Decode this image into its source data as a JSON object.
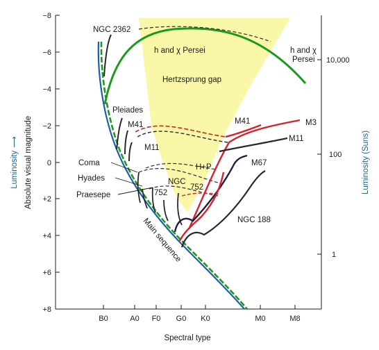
{
  "chart_data": {
    "type": "line",
    "xlabel": "Spectral type",
    "ylabel": "Absolute visual magnitude",
    "y2label": "Luminosity (Suns)",
    "arrow_label": "Luminosity",
    "arrow_glyph": "⟶",
    "x_categories": [
      "B0",
      "A0",
      "F0",
      "G0",
      "K0",
      "M0",
      "M8"
    ],
    "y_ticks": [
      "−8",
      "−6",
      "−4",
      "−2",
      "0",
      "+2",
      "+4",
      "+6",
      "+8"
    ],
    "y2_ticks": [
      "10,000",
      "100",
      "1"
    ],
    "ylim": [
      -8,
      8
    ],
    "y_inverted": true,
    "region_label": "Hertzsprung gap",
    "main_sequence_label": "Main sequence",
    "colors": {
      "green": "#1a9a1a",
      "red": "#d8202a",
      "black": "#2a2a2a",
      "dark": "#2a1a3a",
      "gap": "#fbf7a8",
      "lum": "#1b6a8a"
    },
    "series": [
      {
        "name": "NGC 2362",
        "color": "black",
        "points": [
          [
            0.62,
            -5.0
          ],
          [
            0.68,
            -6.5
          ],
          [
            0.78,
            -7.2
          ]
        ]
      },
      {
        "name": "h and χ Persei",
        "color": "green",
        "points": [
          [
            1.05,
            -3.0
          ],
          [
            1.2,
            -5.8
          ],
          [
            1.55,
            -6.9
          ],
          [
            2.4,
            -7.5
          ],
          [
            3.3,
            -7.3
          ],
          [
            4.0,
            -6.8
          ],
          [
            4.6,
            -5.8
          ],
          [
            5.0,
            -4.8
          ]
        ]
      },
      {
        "name": "Pleiades",
        "color": "black",
        "points": [
          [
            0.85,
            -2.0
          ],
          [
            0.88,
            -1.0
          ],
          [
            0.95,
            0.0
          ]
        ]
      },
      {
        "name": "M41",
        "color": "black",
        "points": [
          [
            0.95,
            -2.0
          ],
          [
            0.98,
            -0.8
          ],
          [
            1.05,
            0.2
          ]
        ]
      },
      {
        "name": "M41",
        "color": "red",
        "points": [
          [
            3.4,
            -1.2
          ],
          [
            3.9,
            -1.8
          ]
        ]
      },
      {
        "name": "M3",
        "color": "red",
        "points": [
          [
            3.05,
            0.2
          ],
          [
            3.35,
            -1.5
          ],
          [
            3.9,
            -2.0
          ],
          [
            4.3,
            -2.5
          ]
        ]
      },
      {
        "name": "M11",
        "color": "black",
        "points": [
          [
            1.1,
            -1.1
          ],
          [
            1.08,
            -0.3
          ],
          [
            1.12,
            0.5
          ]
        ]
      },
      {
        "name": "M11",
        "color": "black",
        "points": [
          [
            3.05,
            -0.7
          ],
          [
            3.6,
            -1.0
          ],
          [
            4.2,
            -1.3
          ]
        ]
      },
      {
        "name": "M67",
        "color": "dark",
        "points": [
          [
            2.35,
            2.8
          ],
          [
            2.45,
            3.3
          ],
          [
            2.7,
            3.5
          ],
          [
            3.0,
            2.3
          ],
          [
            3.2,
            1.5
          ],
          [
            3.45,
            0.0
          ]
        ]
      },
      {
        "name": "NGC 188",
        "color": "black",
        "points": [
          [
            2.3,
            3.9
          ],
          [
            2.5,
            3.3
          ],
          [
            2.8,
            3.8
          ],
          [
            3.3,
            2.8
          ],
          [
            3.6,
            1.6
          ],
          [
            3.95,
            0.5
          ]
        ]
      },
      {
        "name": "H+P",
        "color": "red",
        "points": [
          [
            2.3,
            4.2
          ],
          [
            2.5,
            3.4
          ],
          [
            2.9,
            2.5
          ],
          [
            3.3,
            1.3
          ],
          [
            3.6,
            -0.4
          ],
          [
            3.85,
            -1.3
          ]
        ]
      },
      {
        "name": "NGC 752",
        "color": "black",
        "points": [
          [
            2.15,
            1.0
          ],
          [
            2.25,
            -0.3
          ],
          [
            2.4,
            -0.6
          ]
        ]
      },
      {
        "name": "Coma",
        "color": "black",
        "points": [
          [
            1.35,
            1.4
          ],
          [
            1.45,
            1.0
          ]
        ]
      },
      {
        "name": "Hyades",
        "color": "black",
        "points": [
          [
            1.6,
            2.4
          ],
          [
            1.65,
            1.6
          ]
        ]
      },
      {
        "name": "Praesepe",
        "color": "black",
        "points": [
          [
            1.8,
            2.5
          ],
          [
            1.85,
            2.0
          ]
        ]
      }
    ],
    "labels": {
      "ngc2362": "NGC 2362",
      "hchi_top": "h and χ Persei",
      "hchi_right1": "h and χ",
      "hchi_right2": "Persei",
      "pleiades": "Pleiades",
      "m41_left": "M41",
      "m41_right": "M41",
      "m11_left": "M11",
      "m11_right": "M11",
      "m3": "M3",
      "hp": "H+P",
      "m67": "M67",
      "coma": "Coma",
      "hyades": "Hyades",
      "praesepe": "Praesepe",
      "ngc752a": "NGC",
      "ngc752b": "752",
      "ngc752c": "752",
      "ngc188": "NGC 188"
    }
  }
}
